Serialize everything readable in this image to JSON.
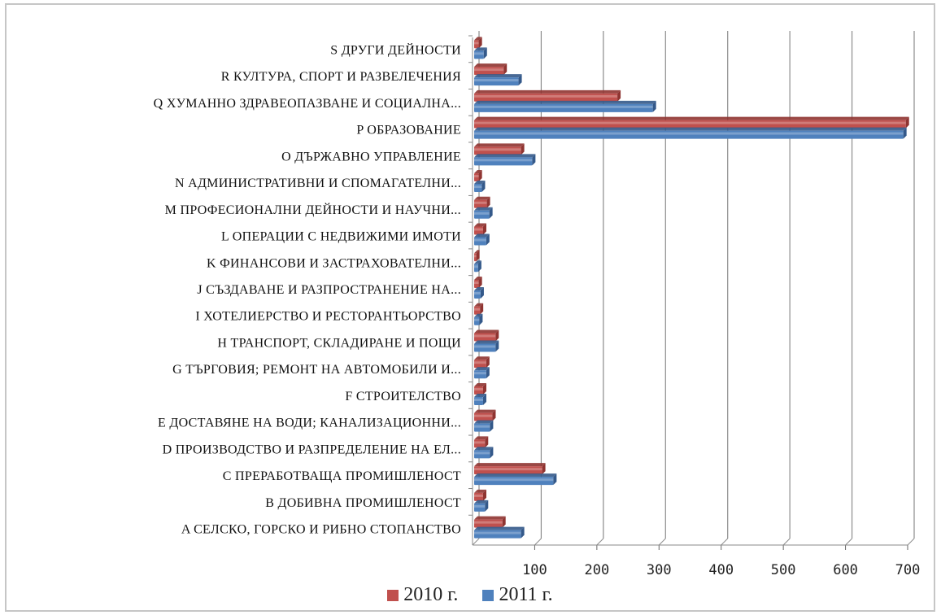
{
  "chart_data": {
    "type": "bar",
    "orientation": "horizontal",
    "categories": [
      "A СЕЛСКО, ГОРСКО И РИБНО СТОПАНСТВО",
      "B ДОБИВНА ПРОМИШЛЕНОСТ",
      "C ПРЕРАБОТВАЩА ПРОМИШЛЕНОСТ",
      "D ПРОИЗВОДСТВО И РАЗПРЕДЕЛЕНИЕ НА ЕЛ...",
      "E ДОСТАВЯНЕ НА ВОДИ; КАНАЛИЗАЦИОННИ...",
      "F СТРОИТЕЛСТВО",
      "G ТЪРГОВИЯ; РЕМОНТ НА АВТОМОБИЛИ И...",
      "H ТРАНСПОРТ, СКЛАДИРАНЕ И ПОЩИ",
      "I ХОТЕЛИЕРСТВО И РЕСТОРАНТЬОРСТВО",
      "J СЪЗДАВАНЕ И РАЗПРОСТРАНЕНИЕ НА...",
      "K ФИНАНСОВИ И ЗАСТРАХОВАТЕЛНИ...",
      "L ОПЕРАЦИИ С НЕДВИЖИМИ ИМОТИ",
      "M ПРОФЕСИОНАЛНИ ДЕЙНОСТИ И НАУЧНИ...",
      "N АДМИНИСТРАТИВНИ И СПОМАГАТЕЛНИ...",
      "O ДЪРЖАВНО УПРАВЛЕНИЕ",
      "P ОБРАЗОВАНИЕ",
      "Q ХУМАННО ЗДРАВЕОПАЗВАНЕ И СОЦИАЛНА...",
      "R КУЛТУРА, СПОРТ И РАЗВЕЛЕЧЕНИЯ",
      "S ДРУГИ ДЕЙНОСТИ"
    ],
    "series": [
      {
        "name": "2010 г.",
        "color": "#c0504d",
        "values": [
          48,
          17,
          112,
          20,
          32,
          17,
          22,
          37,
          12,
          10,
          6,
          17,
          23,
          10,
          78,
          697,
          233,
          50,
          10
        ]
      },
      {
        "name": "2011 г.",
        "color": "#4f81bd",
        "values": [
          78,
          20,
          130,
          28,
          28,
          17,
          22,
          37,
          11,
          13,
          9,
          22,
          27,
          15,
          96,
          693,
          290,
          74,
          18
        ]
      }
    ],
    "xlim": [
      0,
      700
    ],
    "xticks": [
      "",
      "100",
      "200",
      "300",
      "400",
      "500",
      "600",
      "700"
    ],
    "gridlines": true,
    "legend_position": "bottom"
  }
}
